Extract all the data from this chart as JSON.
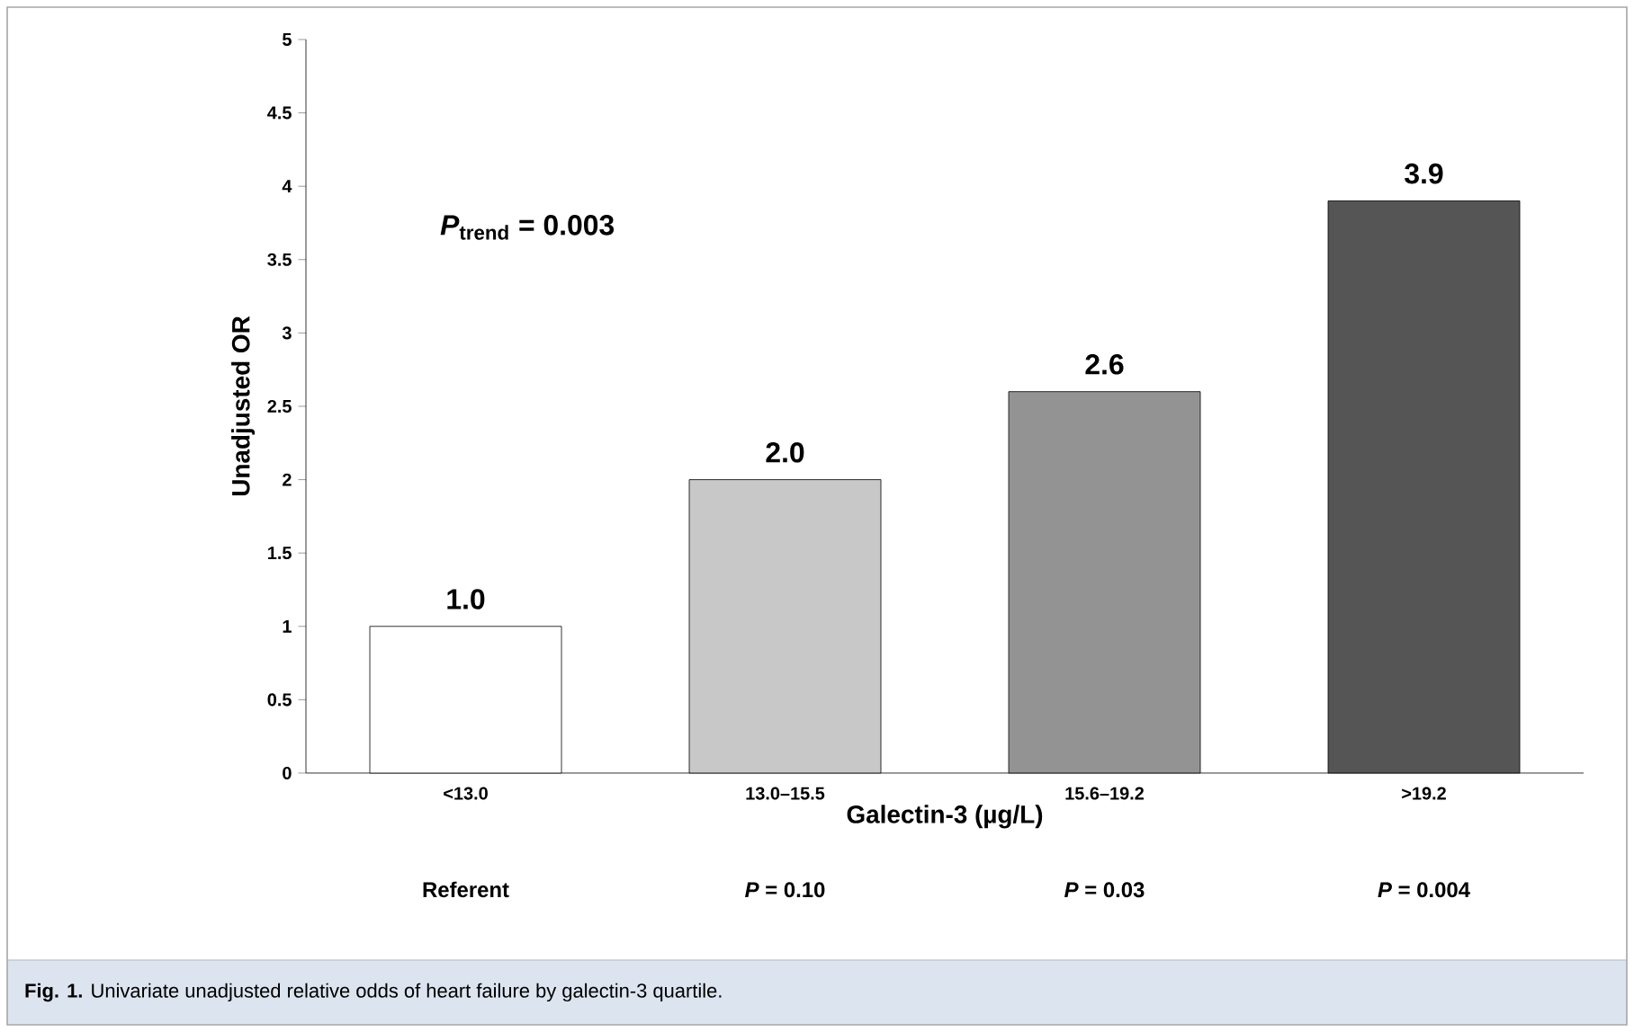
{
  "chart_data": {
    "type": "bar",
    "xlabel": "Galectin-3 (µg/L)",
    "ylabel": "Unadjusted OR",
    "categories": [
      "<13.0",
      "13.0–15.5",
      "15.6–19.2",
      ">19.2"
    ],
    "values": [
      1.0,
      2.0,
      2.6,
      3.9
    ],
    "value_labels": [
      "1.0",
      "2.0",
      "2.6",
      "3.9"
    ],
    "colors": [
      "#ffffff",
      "#c8c8c8",
      "#939393",
      "#555555"
    ],
    "ylim": [
      0,
      5
    ],
    "yticks": [
      0,
      0.5,
      1,
      1.5,
      2,
      2.5,
      3,
      3.5,
      4,
      4.5,
      5
    ],
    "annotations": [
      "*P*$_{trend}$ = 0.003",
      "Referent",
      "*P* = 0.10",
      "*P* = 0.03",
      "*P* = 0.004",
      "**Fig. 1.** Univariate unadjusted relative odds of heart failure by galectin-3 quartile."
    ]
  }
}
